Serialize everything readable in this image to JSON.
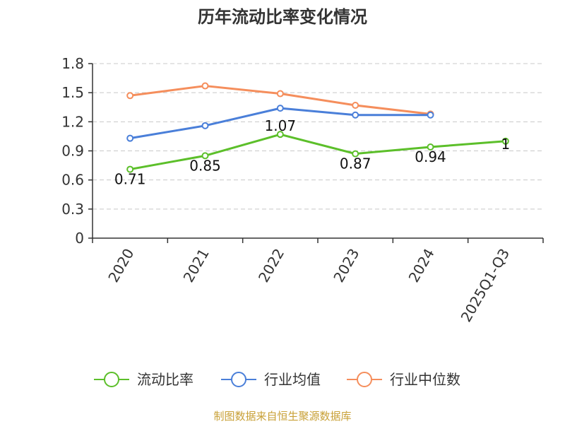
{
  "chart_data": {
    "type": "line",
    "title": "历年流动比率变化情况",
    "categories": [
      "2020",
      "2021",
      "2022",
      "2023",
      "2024",
      "2025Q1-Q3"
    ],
    "ylim": [
      0,
      1.8
    ],
    "yticks": [
      "0",
      "0.3",
      "0.6",
      "0.9",
      "1.2",
      "1.5",
      "1.8"
    ],
    "grid": true,
    "legend_position": "bottom",
    "series": [
      {
        "name": "流动比率",
        "color": "#5cbf2a",
        "values": [
          0.71,
          0.85,
          1.07,
          0.87,
          0.94,
          1
        ],
        "labels": [
          "0.71",
          "0.85",
          "1.07",
          "0.87",
          "0.94",
          "1"
        ]
      },
      {
        "name": "行业均值",
        "color": "#4a7fd9",
        "values": [
          1.03,
          1.16,
          1.34,
          1.27,
          1.27,
          null
        ]
      },
      {
        "name": "行业中位数",
        "color": "#f58e5c",
        "values": [
          1.47,
          1.57,
          1.49,
          1.37,
          1.28,
          null
        ]
      }
    ]
  },
  "source": {
    "text": "制图数据来自恒生聚源数据库",
    "color": "#c8a036"
  }
}
